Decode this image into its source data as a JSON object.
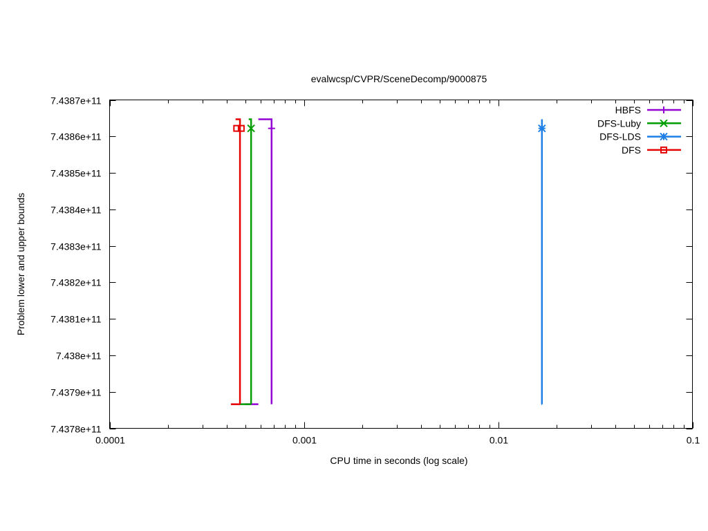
{
  "chart_data": {
    "type": "line",
    "title": "evalwcsp/CVPR/SceneDecomp/9000875",
    "xlabel": "CPU time in seconds (log scale)",
    "ylabel": "Problem lower and upper bounds",
    "x_scale": "log",
    "xlim": [
      0.0001,
      0.1
    ],
    "ylim": [
      743780000000,
      743870000000
    ],
    "x_ticks": [
      {
        "value": 0.0001,
        "label": "0.0001"
      },
      {
        "value": 0.001,
        "label": "0.001"
      },
      {
        "value": 0.01,
        "label": "0.01"
      },
      {
        "value": 0.1,
        "label": "0.1"
      }
    ],
    "y_ticks": [
      {
        "value": 743780000000,
        "label": "7.4378e+11"
      },
      {
        "value": 743790000000,
        "label": "7.4379e+11"
      },
      {
        "value": 743800000000,
        "label": "7.438e+11"
      },
      {
        "value": 743810000000,
        "label": "7.4381e+11"
      },
      {
        "value": 743820000000,
        "label": "7.4382e+11"
      },
      {
        "value": 743830000000,
        "label": "7.4383e+11"
      },
      {
        "value": 743840000000,
        "label": "7.4384e+11"
      },
      {
        "value": 743850000000,
        "label": "7.4385e+11"
      },
      {
        "value": 743860000000,
        "label": "7.4386e+11"
      },
      {
        "value": 743870000000,
        "label": "7.4387e+11"
      }
    ],
    "grid": false,
    "legend_position": "top-right",
    "series": [
      {
        "name": "HBFS",
        "color": "#9400d3",
        "marker": "plus",
        "upper": [
          [
            0.000583,
            743864700000
          ],
          [
            0.000682,
            743862200000
          ]
        ],
        "lower": [
          [
            0.000583,
            743786600000
          ]
        ],
        "lower_start": 0.000497,
        "points": [
          [
            0.000682,
            743862200000
          ]
        ]
      },
      {
        "name": "DFS-Luby",
        "color": "#009e00",
        "marker": "cross",
        "upper": [
          [
            0.00052,
            743864700000
          ],
          [
            0.000535,
            743862200000
          ]
        ],
        "lower": [
          [
            0.000535,
            743786600000
          ]
        ],
        "lower_start": 0.000465,
        "points": [
          [
            0.000535,
            743862200000
          ]
        ]
      },
      {
        "name": "DFS-LDS",
        "color": "#1e7fe6",
        "marker": "star",
        "upper": [
          [
            0.0168,
            743864700000
          ],
          [
            0.0168,
            743862200000
          ]
        ],
        "lower": [
          [
            0.0168,
            743786600000
          ]
        ],
        "lower_start": 0.0167,
        "points": [
          [
            0.0168,
            743862200000
          ]
        ]
      },
      {
        "name": "DFS",
        "color": "#e60000",
        "marker": "square",
        "upper": [
          [
            0.000445,
            743864700000
          ],
          [
            0.000469,
            743862200000
          ]
        ],
        "lower": [
          [
            0.000469,
            743786600000
          ]
        ],
        "lower_start": 0.000421,
        "points": [
          [
            0.000451,
            743862200000
          ],
          [
            0.000476,
            743862200000
          ]
        ]
      }
    ]
  }
}
